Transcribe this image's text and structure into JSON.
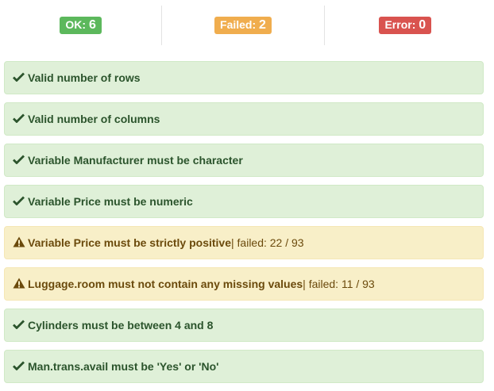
{
  "summary": {
    "ok": {
      "label": "OK:",
      "count": "6",
      "color": "#5cb85c"
    },
    "failed": {
      "label": "Failed:",
      "count": "2",
      "color": "#f0ad4e"
    },
    "error": {
      "label": "Error:",
      "count": "0",
      "color": "#d9534f"
    }
  },
  "checks": [
    {
      "status": "ok",
      "icon": "check-icon",
      "label": "Valid number of rows"
    },
    {
      "status": "ok",
      "icon": "check-icon",
      "label": "Valid number of columns"
    },
    {
      "status": "ok",
      "icon": "check-icon",
      "label": "Variable Manufacturer must be character"
    },
    {
      "status": "ok",
      "icon": "check-icon",
      "label": "Variable Price must be numeric"
    },
    {
      "status": "warn",
      "icon": "warning-icon",
      "label": "Variable Price must be strictly positive",
      "extra": "| failed: 22 / 93"
    },
    {
      "status": "warn",
      "icon": "warning-icon",
      "label": "Luggage.room must not contain any missing values",
      "extra": "| failed: 11 / 93"
    },
    {
      "status": "ok",
      "icon": "check-icon",
      "label": "Cylinders must be between 4 and 8"
    },
    {
      "status": "ok",
      "icon": "check-icon",
      "label": "Man.trans.avail must be 'Yes' or 'No'"
    }
  ]
}
